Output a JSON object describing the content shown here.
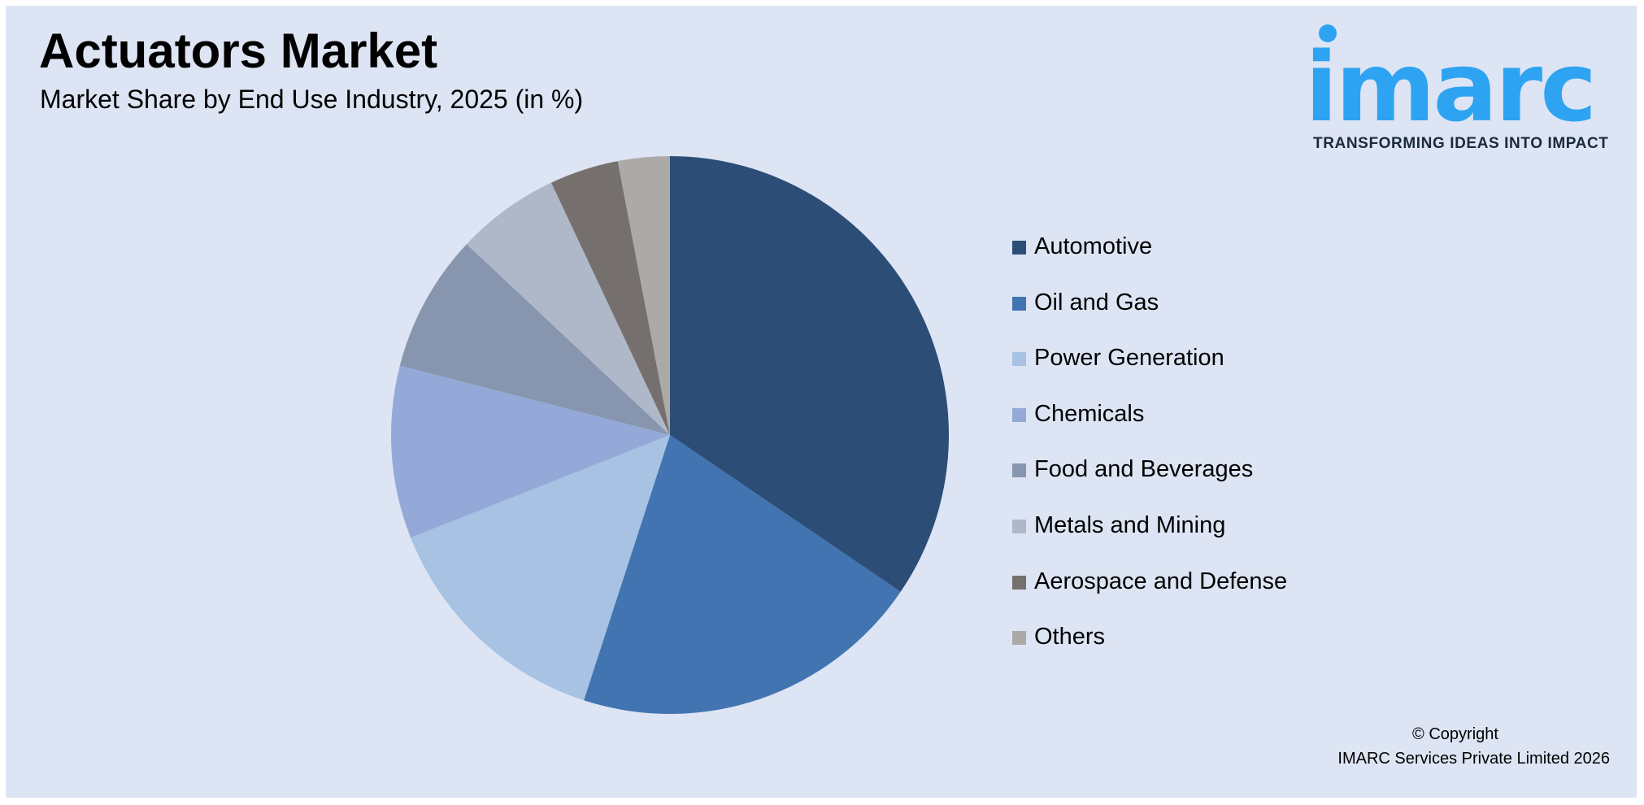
{
  "header": {
    "title": "Actuators Market",
    "subtitle": "Market Share by End Use Industry, 2025 (in %)"
  },
  "logo": {
    "wordmark": "imarc",
    "tagline": "TRANSFORMING IDEAS INTO IMPACT",
    "color": "#2ea3f2"
  },
  "footer": {
    "copyright_line1": "© Copyright",
    "copyright_line2": "IMARC Services Private Limited 2026"
  },
  "chart_data": {
    "type": "pie",
    "title": "Market Share by End Use Industry, 2025 (in %)",
    "start_angle_deg": 0,
    "direction": "clockwise",
    "legend_position": "right",
    "slices": [
      {
        "label": "Automotive",
        "value": 34.5,
        "color": "#2c4d76"
      },
      {
        "label": "Oil and Gas",
        "value": 20.5,
        "color": "#4174b1"
      },
      {
        "label": "Power Generation",
        "value": 14.0,
        "color": "#a7c2e3"
      },
      {
        "label": "Chemicals",
        "value": 10.0,
        "color": "#95a9d8"
      },
      {
        "label": "Food and Beverages",
        "value": 8.0,
        "color": "#8796ae"
      },
      {
        "label": "Metals and Mining",
        "value": 6.0,
        "color": "#aeb8c9"
      },
      {
        "label": "Aerospace and Defense",
        "value": 4.0,
        "color": "#75706e"
      },
      {
        "label": "Others",
        "value": 3.0,
        "color": "#acaaa8"
      }
    ]
  }
}
